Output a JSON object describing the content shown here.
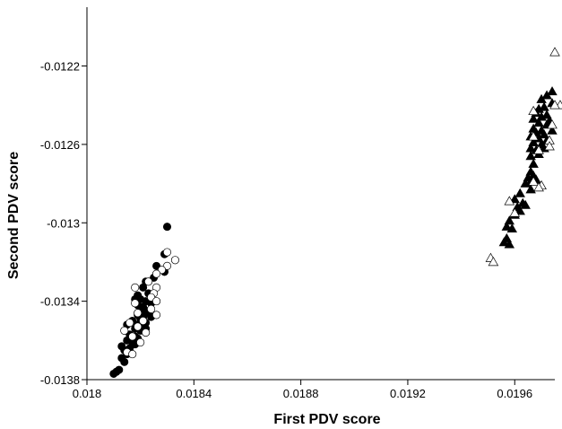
{
  "chart_data": {
    "type": "scatter",
    "title": "",
    "xlabel": "First PDV score",
    "ylabel": "Second PDV score",
    "xlim": [
      0.018,
      0.01975
    ],
    "ylim": [
      -0.0138,
      -0.0119
    ],
    "x_ticks": [
      0.018,
      0.0184,
      0.0188,
      0.0192,
      0.0196
    ],
    "x_tick_labels": [
      "0.018",
      "0.0184",
      "0.0188",
      "0.0192",
      "0.0196"
    ],
    "y_ticks": [
      -0.0138,
      -0.0134,
      -0.013,
      -0.0126,
      -0.0122
    ],
    "y_tick_labels": [
      "-0.0138",
      "-0.0134",
      "-0.013",
      "-0.0126",
      "-0.0122"
    ],
    "grid": false,
    "legend": "none",
    "series": [
      {
        "marker": "filled-circle",
        "color": "#000000",
        "points": [
          [
            0.0183,
            -0.01302
          ],
          [
            0.01829,
            -0.01316
          ],
          [
            0.01826,
            -0.01322
          ],
          [
            0.01829,
            -0.01325
          ],
          [
            0.01825,
            -0.01328
          ],
          [
            0.01822,
            -0.0133
          ],
          [
            0.01821,
            -0.01333
          ],
          [
            0.01819,
            -0.01337
          ],
          [
            0.01823,
            -0.01336
          ],
          [
            0.0182,
            -0.01339
          ],
          [
            0.01818,
            -0.01339
          ],
          [
            0.01822,
            -0.0134
          ],
          [
            0.01824,
            -0.01341
          ],
          [
            0.01819,
            -0.01342
          ],
          [
            0.01821,
            -0.01343
          ],
          [
            0.0182,
            -0.01345
          ],
          [
            0.01823,
            -0.01345
          ],
          [
            0.01822,
            -0.01346
          ],
          [
            0.01819,
            -0.01347
          ],
          [
            0.01821,
            -0.01348
          ],
          [
            0.01824,
            -0.01348
          ],
          [
            0.0182,
            -0.01349
          ],
          [
            0.01817,
            -0.0135
          ],
          [
            0.01822,
            -0.01351
          ],
          [
            0.01819,
            -0.01352
          ],
          [
            0.01815,
            -0.01352
          ],
          [
            0.01821,
            -0.01353
          ],
          [
            0.01818,
            -0.01354
          ],
          [
            0.01822,
            -0.01354
          ],
          [
            0.0182,
            -0.01355
          ],
          [
            0.01816,
            -0.01357
          ],
          [
            0.01818,
            -0.01358
          ],
          [
            0.01815,
            -0.0136
          ],
          [
            0.01817,
            -0.01361
          ],
          [
            0.01819,
            -0.01359
          ],
          [
            0.01813,
            -0.01363
          ],
          [
            0.01816,
            -0.01364
          ],
          [
            0.01814,
            -0.01365
          ],
          [
            0.01818,
            -0.01362
          ],
          [
            0.01815,
            -0.01367
          ],
          [
            0.01813,
            -0.01369
          ],
          [
            0.01814,
            -0.01371
          ],
          [
            0.01812,
            -0.01375
          ],
          [
            0.01811,
            -0.01376
          ],
          [
            0.0181,
            -0.01377
          ]
        ]
      },
      {
        "marker": "open-circle",
        "color": "#000000",
        "points": [
          [
            0.01833,
            -0.01319
          ],
          [
            0.0183,
            -0.01315
          ],
          [
            0.0183,
            -0.01322
          ],
          [
            0.01828,
            -0.01324
          ],
          [
            0.01826,
            -0.01326
          ],
          [
            0.01823,
            -0.0133
          ],
          [
            0.01818,
            -0.01333
          ],
          [
            0.01826,
            -0.01333
          ],
          [
            0.01825,
            -0.01336
          ],
          [
            0.01824,
            -0.01338
          ],
          [
            0.01826,
            -0.0134
          ],
          [
            0.01818,
            -0.01341
          ],
          [
            0.01824,
            -0.01344
          ],
          [
            0.01819,
            -0.01346
          ],
          [
            0.01826,
            -0.01347
          ],
          [
            0.01821,
            -0.0135
          ],
          [
            0.01816,
            -0.01351
          ],
          [
            0.01819,
            -0.01353
          ],
          [
            0.01814,
            -0.01355
          ],
          [
            0.01822,
            -0.01356
          ],
          [
            0.01817,
            -0.01358
          ],
          [
            0.0182,
            -0.01361
          ],
          [
            0.01815,
            -0.01366
          ],
          [
            0.01817,
            -0.01367
          ]
        ]
      },
      {
        "marker": "filled-triangle",
        "color": "#000000",
        "points": [
          [
            0.01974,
            -0.01233
          ],
          [
            0.01972,
            -0.01235
          ],
          [
            0.0197,
            -0.01237
          ],
          [
            0.01974,
            -0.01239
          ],
          [
            0.01971,
            -0.01241
          ],
          [
            0.01969,
            -0.01242
          ],
          [
            0.01968,
            -0.01244
          ],
          [
            0.01972,
            -0.01245
          ],
          [
            0.0197,
            -0.01246
          ],
          [
            0.01967,
            -0.01247
          ],
          [
            0.01973,
            -0.01248
          ],
          [
            0.01969,
            -0.01249
          ],
          [
            0.01972,
            -0.0125
          ],
          [
            0.01967,
            -0.01252
          ],
          [
            0.0197,
            -0.01253
          ],
          [
            0.01974,
            -0.01253
          ],
          [
            0.01968,
            -0.01254
          ],
          [
            0.01971,
            -0.01255
          ],
          [
            0.01966,
            -0.01256
          ],
          [
            0.01969,
            -0.01257
          ],
          [
            0.01972,
            -0.01258
          ],
          [
            0.01967,
            -0.01259
          ],
          [
            0.0197,
            -0.0126
          ],
          [
            0.01966,
            -0.01262
          ],
          [
            0.01968,
            -0.01263
          ],
          [
            0.01971,
            -0.01262
          ],
          [
            0.01969,
            -0.01265
          ],
          [
            0.01966,
            -0.01266
          ],
          [
            0.01967,
            -0.0127
          ],
          [
            0.01966,
            -0.01274
          ],
          [
            0.01967,
            -0.01276
          ],
          [
            0.01965,
            -0.01277
          ],
          [
            0.01968,
            -0.01278
          ],
          [
            0.01966,
            -0.01279
          ],
          [
            0.01964,
            -0.0128
          ],
          [
            0.01966,
            -0.01283
          ],
          [
            0.01962,
            -0.01285
          ],
          [
            0.0196,
            -0.01288
          ],
          [
            0.01963,
            -0.0129
          ],
          [
            0.01961,
            -0.01292
          ],
          [
            0.01964,
            -0.01291
          ],
          [
            0.01962,
            -0.01294
          ],
          [
            0.0196,
            -0.01296
          ],
          [
            0.01958,
            -0.01299
          ],
          [
            0.01957,
            -0.01302
          ],
          [
            0.01959,
            -0.01303
          ],
          [
            0.01957,
            -0.01308
          ],
          [
            0.01956,
            -0.0131
          ],
          [
            0.01958,
            -0.01311
          ]
        ]
      },
      {
        "marker": "open-triangle",
        "color": "#000000",
        "points": [
          [
            0.01975,
            -0.01213
          ],
          [
            0.01977,
            -0.0124
          ],
          [
            0.01975,
            -0.0124
          ],
          [
            0.01967,
            -0.01243
          ],
          [
            0.01974,
            -0.0125
          ],
          [
            0.01967,
            -0.01256
          ],
          [
            0.01973,
            -0.01258
          ],
          [
            0.01973,
            -0.01261
          ],
          [
            0.01969,
            -0.01263
          ],
          [
            0.01967,
            -0.01279
          ],
          [
            0.0197,
            -0.01281
          ],
          [
            0.01969,
            -0.01282
          ],
          [
            0.01958,
            -0.01289
          ],
          [
            0.0196,
            -0.01295
          ],
          [
            0.01951,
            -0.01318
          ],
          [
            0.01952,
            -0.0132
          ]
        ]
      }
    ]
  }
}
